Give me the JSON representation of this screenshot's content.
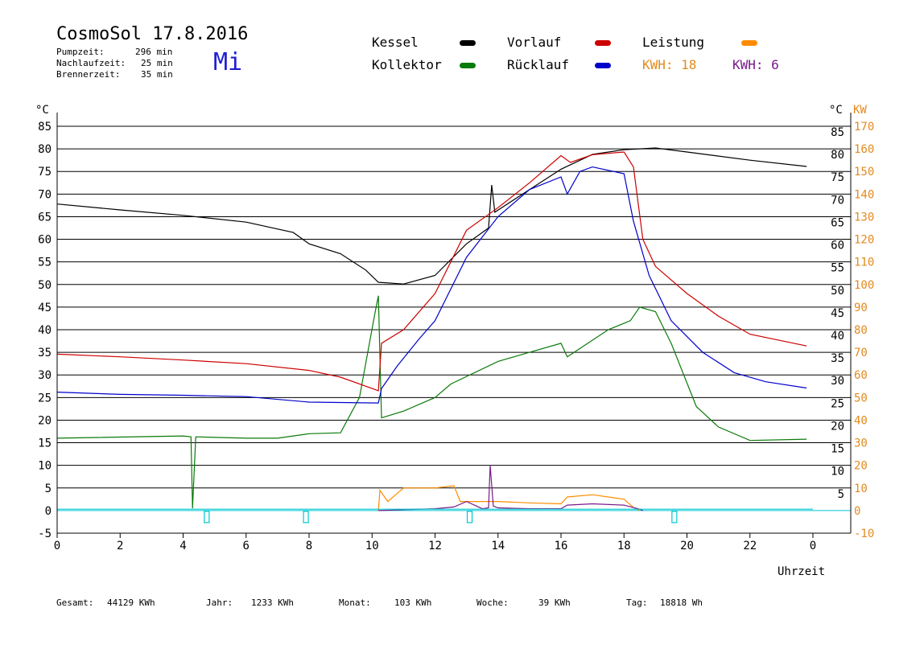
{
  "header": {
    "title": "CosmoSol 17.8.2016",
    "day": "Mi",
    "pump_label": "Pumpzeit:",
    "pump_value": "296 min",
    "nachlauf_label": "Nachlaufzeit:",
    "nachlauf_value": "25 min",
    "brenner_label": "Brennerzeit:",
    "brenner_value": "35 min"
  },
  "legend": {
    "kessel": "Kessel",
    "kollektor": "Kollektor",
    "vorlauf": "Vorlauf",
    "ruecklauf": "Rücklauf",
    "leistung": "Leistung",
    "kwh1": "KWH: 18",
    "kwh2": "KWH: 6"
  },
  "colors": {
    "kessel": "#000000",
    "kollektor": "#0a7a0a",
    "vorlauf": "#cc0000",
    "ruecklauf": "#0000cc",
    "leistung": "#ff8c00",
    "kwh2": "#7a1a8a",
    "pump": "#00c8d0"
  },
  "stats": {
    "gesamt_label": "Gesamt:",
    "gesamt_value": "44129 KWh",
    "jahr_label": "Jahr:",
    "jahr_value": "1233 KWh",
    "monat_label": "Monat:",
    "monat_value": "103 KWh",
    "woche_label": "Woche:",
    "woche_value": "39 KWh",
    "tag_label": "Tag:",
    "tag_value": "18818 Wh"
  },
  "chart_data": {
    "type": "line",
    "xlabel": "Uhrzeit",
    "ylabel_left": "°C",
    "ylabel_right_unit1": "°C",
    "ylabel_right_unit2": "KW",
    "xlim": [
      0,
      24
    ],
    "ylim": [
      -5,
      85
    ],
    "x_ticks": [
      "0",
      "2",
      "4",
      "6",
      "8",
      "10",
      "12",
      "14",
      "16",
      "18",
      "20",
      "22",
      "0"
    ],
    "y_ticks_left": [
      "85",
      "80",
      "75",
      "70",
      "65",
      "60",
      "55",
      "50",
      "45",
      "40",
      "35",
      "30",
      "25",
      "20",
      "15",
      "10",
      "5",
      "0",
      "-5"
    ],
    "y_ticks_right": [
      "85",
      "80",
      "75",
      "70",
      "65",
      "60",
      "55",
      "50",
      "45",
      "40",
      "35",
      "30",
      "25",
      "20",
      "15",
      "10",
      "5"
    ],
    "y_ticks_kw": [
      "170",
      "160",
      "150",
      "140",
      "130",
      "120",
      "110",
      "100",
      "90",
      "80",
      "70",
      "60",
      "50",
      "40",
      "30",
      "20",
      "10",
      "0",
      "-10"
    ],
    "grid": true,
    "series": [
      {
        "name": "Kessel",
        "points": [
          [
            0,
            67.8
          ],
          [
            2,
            66.5
          ],
          [
            4,
            65.3
          ],
          [
            6,
            63.8
          ],
          [
            7.5,
            61.5
          ],
          [
            8,
            59
          ],
          [
            9,
            56.8
          ],
          [
            9.8,
            53.2
          ],
          [
            10.2,
            50.5
          ],
          [
            11,
            50.1
          ],
          [
            12,
            52
          ],
          [
            13,
            59
          ],
          [
            13.7,
            62.5
          ],
          [
            13.8,
            72
          ],
          [
            13.9,
            66
          ],
          [
            15,
            71
          ],
          [
            16,
            75.5
          ],
          [
            17,
            78.8
          ],
          [
            18,
            79.8
          ],
          [
            19,
            80.2
          ],
          [
            20,
            79.3
          ],
          [
            22,
            77.5
          ],
          [
            23.8,
            76.1
          ]
        ]
      },
      {
        "name": "Kollektor",
        "points": [
          [
            0,
            16
          ],
          [
            4,
            16.5
          ],
          [
            4.25,
            16.3
          ],
          [
            4.3,
            0.5
          ],
          [
            4.4,
            16.3
          ],
          [
            6,
            16
          ],
          [
            7,
            16
          ],
          [
            8,
            17
          ],
          [
            9,
            17.2
          ],
          [
            9.6,
            25
          ],
          [
            10.1,
            44
          ],
          [
            10.2,
            47.5
          ],
          [
            10.3,
            20.5
          ],
          [
            11,
            22
          ],
          [
            12,
            25
          ],
          [
            12.5,
            28
          ],
          [
            14,
            33
          ],
          [
            15,
            35
          ],
          [
            16,
            37
          ],
          [
            16.2,
            34
          ],
          [
            17.5,
            40
          ],
          [
            18.2,
            42
          ],
          [
            18.5,
            45
          ],
          [
            19,
            44
          ],
          [
            19.5,
            37
          ],
          [
            20.3,
            23
          ],
          [
            21,
            18.5
          ],
          [
            22,
            15.5
          ],
          [
            23.8,
            15.8
          ]
        ]
      },
      {
        "name": "Vorlauf",
        "points": [
          [
            0,
            34.6
          ],
          [
            2,
            34
          ],
          [
            4,
            33.3
          ],
          [
            6,
            32.5
          ],
          [
            8,
            31
          ],
          [
            9,
            29.5
          ],
          [
            10,
            27
          ],
          [
            10.2,
            26.5
          ],
          [
            10.3,
            37
          ],
          [
            11,
            40
          ],
          [
            12,
            48
          ],
          [
            13,
            62
          ],
          [
            14,
            67
          ],
          [
            15,
            72.5
          ],
          [
            16,
            78.5
          ],
          [
            16.3,
            77
          ],
          [
            17,
            78.7
          ],
          [
            18,
            79.3
          ],
          [
            18.3,
            76
          ],
          [
            18.6,
            60
          ],
          [
            19,
            54
          ],
          [
            20,
            48
          ],
          [
            21,
            43
          ],
          [
            22,
            39
          ],
          [
            23.8,
            36.4
          ]
        ]
      },
      {
        "name": "Rücklauf",
        "points": [
          [
            0,
            26.2
          ],
          [
            2,
            25.7
          ],
          [
            4,
            25.5
          ],
          [
            6,
            25.2
          ],
          [
            8,
            24
          ],
          [
            10.2,
            23.8
          ],
          [
            10.3,
            27
          ],
          [
            10.8,
            32
          ],
          [
            11.5,
            38
          ],
          [
            12,
            42
          ],
          [
            13,
            56
          ],
          [
            14,
            65
          ],
          [
            15,
            71
          ],
          [
            16,
            73.8
          ],
          [
            16.2,
            70
          ],
          [
            16.6,
            75
          ],
          [
            17,
            76
          ],
          [
            18,
            74.5
          ],
          [
            18.3,
            64
          ],
          [
            18.8,
            52
          ],
          [
            19.5,
            42
          ],
          [
            20.5,
            35
          ],
          [
            21.5,
            30.5
          ],
          [
            22.5,
            28.5
          ],
          [
            23.8,
            27.1
          ]
        ]
      },
      {
        "name": "Leistung",
        "points": [
          [
            10.2,
            0
          ],
          [
            10.25,
            4.5
          ],
          [
            10.5,
            2
          ],
          [
            11,
            5
          ],
          [
            12,
            5
          ],
          [
            12.6,
            5.5
          ],
          [
            12.8,
            2
          ],
          [
            13.5,
            2
          ],
          [
            14,
            2
          ],
          [
            15,
            1.7
          ],
          [
            16,
            1.5
          ],
          [
            16.2,
            3
          ],
          [
            17,
            3.5
          ],
          [
            18,
            2.5
          ],
          [
            18.3,
            0.7
          ],
          [
            18.5,
            0
          ]
        ]
      },
      {
        "name": "KWH 6",
        "points": [
          [
            10.2,
            0
          ],
          [
            11,
            0.2
          ],
          [
            12,
            0.4
          ],
          [
            12.6,
            0.8
          ],
          [
            13,
            2
          ],
          [
            13.5,
            0.4
          ],
          [
            13.7,
            0.6
          ],
          [
            13.75,
            10
          ],
          [
            13.85,
            1
          ],
          [
            14,
            0.6
          ],
          [
            15,
            0.4
          ],
          [
            16,
            0.4
          ],
          [
            16.2,
            1.2
          ],
          [
            17,
            1.5
          ],
          [
            18,
            1.2
          ],
          [
            18.5,
            0.3
          ],
          [
            18.6,
            0
          ]
        ]
      },
      {
        "name": "Pumpe",
        "points": [
          [
            0,
            0.3
          ],
          [
            24,
            0.3
          ]
        ]
      }
    ]
  }
}
